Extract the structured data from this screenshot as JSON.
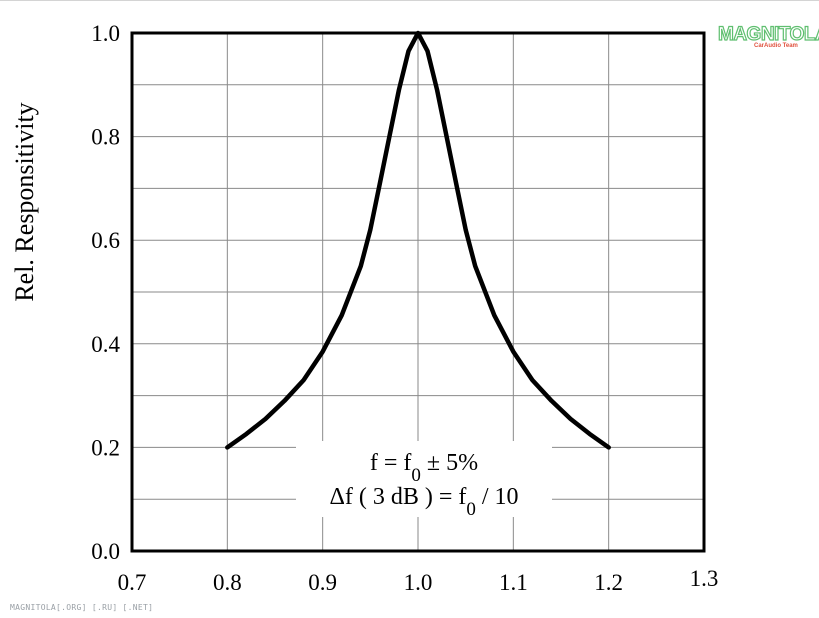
{
  "watermark": {
    "logo_text": "MAGNITOLA",
    "logo_sub": "CarAudio Team",
    "footer": "MAGNITOLA[.ORG] [.RU] [.NET]"
  },
  "chart_data": {
    "type": "line",
    "title": "",
    "xlabel": "",
    "ylabel": "Rel. Responsitivity",
    "xlim": [
      0.7,
      1.3
    ],
    "ylim": [
      0.0,
      1.0
    ],
    "grid": true,
    "x_ticks": [
      "0.7",
      "0.8",
      "0.9",
      "1.0",
      "1.1",
      "1.2",
      "1.3"
    ],
    "y_ticks": [
      "0.0",
      "0.2",
      "0.4",
      "0.6",
      "0.8",
      "1.0"
    ],
    "annotation": {
      "line1": "f = f0 ± 5%",
      "line2": "Δf ( 3 dB ) = f0 / 10"
    },
    "series": [
      {
        "x": [
          0.8,
          0.82,
          0.84,
          0.86,
          0.88,
          0.9,
          0.92,
          0.94,
          0.95,
          0.96,
          0.97,
          0.98,
          0.99,
          1.0,
          1.01,
          1.02,
          1.03,
          1.04,
          1.05,
          1.06,
          1.08,
          1.1,
          1.12,
          1.14,
          1.16,
          1.18,
          1.2
        ],
        "y": [
          0.2,
          0.226,
          0.255,
          0.29,
          0.33,
          0.385,
          0.455,
          0.55,
          0.62,
          0.71,
          0.8,
          0.89,
          0.965,
          1.0,
          0.965,
          0.89,
          0.8,
          0.71,
          0.62,
          0.55,
          0.455,
          0.385,
          0.33,
          0.29,
          0.255,
          0.226,
          0.2
        ]
      }
    ]
  }
}
